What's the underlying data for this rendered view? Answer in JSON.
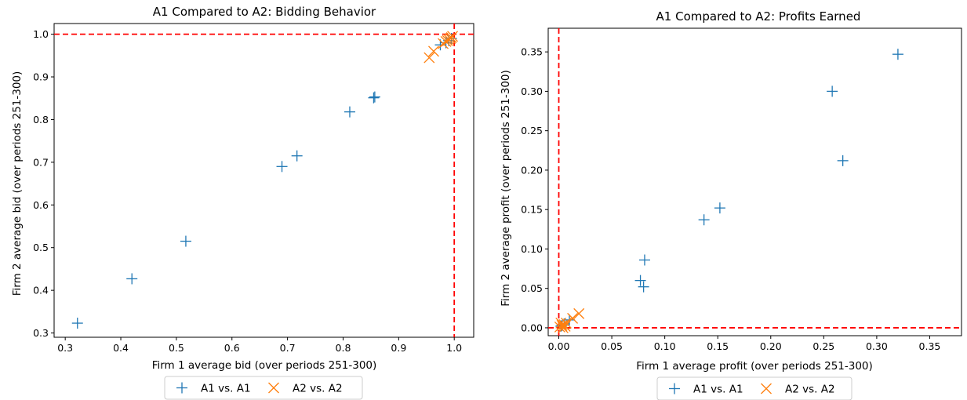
{
  "chart_data": [
    {
      "type": "scatter",
      "title": "A1 Compared to A2: Bidding Behavior",
      "xlabel": "Firm 1 average bid (over periods 251-300)",
      "ylabel": "Firm 2 average bid (over periods 251-300)",
      "xlim": [
        0.28,
        1.035
      ],
      "ylim": [
        0.29,
        1.025
      ],
      "xticks": [
        0.3,
        0.4,
        0.5,
        0.6,
        0.7,
        0.8,
        0.9,
        1.0
      ],
      "yticks": [
        0.3,
        0.4,
        0.5,
        0.6,
        0.7,
        0.8,
        0.9,
        1.0
      ],
      "xtick_labels": [
        "0.3",
        "0.4",
        "0.5",
        "0.6",
        "0.7",
        "0.8",
        "0.9",
        "1.0"
      ],
      "ytick_labels": [
        "0.3",
        "0.4",
        "0.5",
        "0.6",
        "0.7",
        "0.8",
        "0.9",
        "1.0"
      ],
      "reference_lines": {
        "x": 1.0,
        "y": 1.0,
        "color": "#ff0000",
        "style": "dashed"
      },
      "series": [
        {
          "name": "A1 vs. A1",
          "marker": "plus",
          "color": "#1f77b4",
          "points": [
            [
              0.322,
              0.323
            ],
            [
              0.42,
              0.427
            ],
            [
              0.517,
              0.515
            ],
            [
              0.69,
              0.69
            ],
            [
              0.717,
              0.715
            ],
            [
              0.812,
              0.818
            ],
            [
              0.855,
              0.851
            ],
            [
              0.857,
              0.853
            ],
            [
              0.975,
              0.975
            ],
            [
              0.985,
              0.98
            ],
            [
              0.99,
              0.985
            ],
            [
              0.995,
              0.99
            ]
          ]
        },
        {
          "name": "A2 vs. A2",
          "marker": "x",
          "color": "#ff7f0e",
          "points": [
            [
              0.955,
              0.945
            ],
            [
              0.963,
              0.96
            ],
            [
              0.98,
              0.978
            ],
            [
              0.985,
              0.983
            ],
            [
              0.99,
              0.988
            ],
            [
              0.993,
              0.99
            ],
            [
              0.995,
              0.992
            ],
            [
              0.988,
              0.985
            ],
            [
              0.997,
              0.995
            ]
          ]
        }
      ]
    },
    {
      "type": "scatter",
      "title": "A1 Compared to A2: Profits Earned",
      "xlabel": "Firm 1 average profit (over periods 251-300)",
      "ylabel": "Firm 2 average profit (over periods 251-300)",
      "xlim": [
        -0.01,
        0.38
      ],
      "ylim": [
        -0.01,
        0.38
      ],
      "xticks": [
        0.0,
        0.05,
        0.1,
        0.15,
        0.2,
        0.25,
        0.3,
        0.35
      ],
      "yticks": [
        0.0,
        0.05,
        0.1,
        0.15,
        0.2,
        0.25,
        0.3,
        0.35
      ],
      "xtick_labels": [
        "0.00",
        "0.05",
        "0.10",
        "0.15",
        "0.20",
        "0.25",
        "0.30",
        "0.35"
      ],
      "ytick_labels": [
        "0.00",
        "0.05",
        "0.10",
        "0.15",
        "0.20",
        "0.25",
        "0.30",
        "0.35"
      ],
      "reference_lines": {
        "x": 0.0,
        "y": 0.0,
        "color": "#ff0000",
        "style": "dashed"
      },
      "series": [
        {
          "name": "A1 vs. A1",
          "marker": "plus",
          "color": "#1f77b4",
          "points": [
            [
              0.32,
              0.347
            ],
            [
              0.258,
              0.3
            ],
            [
              0.268,
              0.212
            ],
            [
              0.152,
              0.152
            ],
            [
              0.137,
              0.137
            ],
            [
              0.081,
              0.086
            ],
            [
              0.077,
              0.06
            ],
            [
              0.08,
              0.052
            ],
            [
              0.01,
              0.01
            ],
            [
              0.005,
              0.005
            ],
            [
              0.003,
              0.003
            ],
            [
              0.002,
              0.002
            ]
          ]
        },
        {
          "name": "A2 vs. A2",
          "marker": "x",
          "color": "#ff7f0e",
          "points": [
            [
              0.019,
              0.018
            ],
            [
              0.013,
              0.012
            ],
            [
              0.007,
              0.006
            ],
            [
              0.005,
              0.004
            ],
            [
              0.003,
              0.003
            ],
            [
              0.006,
              0.002
            ],
            [
              0.002,
              0.006
            ],
            [
              0.004,
              0.0
            ],
            [
              0.001,
              0.001
            ]
          ]
        }
      ]
    }
  ],
  "legends": [
    {
      "items": [
        {
          "label": "A1 vs. A1",
          "marker": "plus",
          "color": "#1f77b4"
        },
        {
          "label": "A2 vs. A2",
          "marker": "x",
          "color": "#ff7f0e"
        }
      ]
    },
    {
      "items": [
        {
          "label": "A1 vs. A1",
          "marker": "plus",
          "color": "#1f77b4"
        },
        {
          "label": "A2 vs. A2",
          "marker": "x",
          "color": "#ff7f0e"
        }
      ]
    }
  ]
}
